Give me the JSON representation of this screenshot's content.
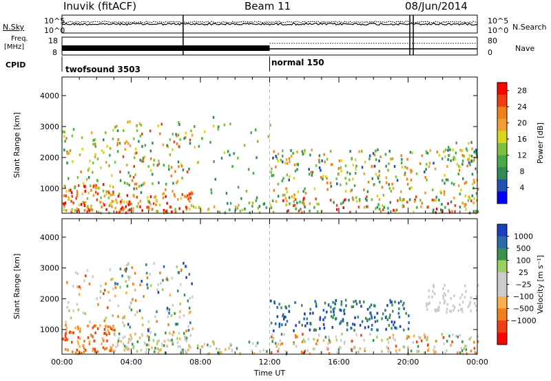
{
  "header": {
    "station": "Inuvik (fitACF)",
    "beam": "Beam 11",
    "date": "08/Jun/2014"
  },
  "params_panel": {
    "nsky_label": "N.Sky",
    "nsearch_label": "N.Search",
    "nsky_ticks": [
      "10^5",
      "10^0"
    ],
    "nsearch_ticks": [
      "10^5",
      "10^0"
    ],
    "freq_label": "Freq.",
    "freq_unit": "[MHz]",
    "freq_ticks": [
      "18",
      "8"
    ],
    "nave_label": "Nave",
    "nave_ticks": [
      "80",
      "0"
    ],
    "cpid_label": "CPID",
    "cpid_modes": [
      {
        "name": "twofsound 3503",
        "start_hour": 0
      },
      {
        "name": "normal 150",
        "start_hour": 12
      }
    ]
  },
  "colors": {
    "power": [
      "#0000ff",
      "#2052b4",
      "#2e8b57",
      "#4aa84a",
      "#7cc23a",
      "#d8d818",
      "#f0a030",
      "#f08018",
      "#f04010",
      "#ff0000"
    ],
    "velocity": [
      "#ff0000",
      "#f04010",
      "#f08018",
      "#f8b050",
      "#cccccc",
      "#cccccc",
      "#9cd060",
      "#3c9050",
      "#2a6aa8",
      "#1a40c0"
    ]
  },
  "chart_data": [
    {
      "type": "heatmap",
      "panel": "power",
      "ylabel": "Slant Range [km]",
      "xlabel": "Time UT",
      "xlim_hours": [
        0,
        24
      ],
      "x_ticks": [
        "00:00",
        "04:00",
        "08:00",
        "12:00",
        "16:00",
        "20:00",
        "00:00"
      ],
      "ylim": [
        200,
        4600
      ],
      "y_ticks": [
        1000,
        2000,
        3000,
        4000
      ],
      "colorbar_label": "Power [dB]",
      "colorbar_ticks": [
        "4",
        "8",
        "12",
        "16",
        "20",
        "24",
        "28"
      ],
      "colorbar_range": [
        0,
        30
      ],
      "scatter_regions": [
        {
          "t0": 0.0,
          "t1": 3.0,
          "r0": 250,
          "r1": 1200,
          "dense": 0.9,
          "vmin": 12,
          "vmax": 30
        },
        {
          "t0": 0.0,
          "t1": 3.0,
          "r0": 1200,
          "r1": 3000,
          "dense": 0.25,
          "vmin": 8,
          "vmax": 22
        },
        {
          "t0": 3.0,
          "t1": 7.5,
          "r0": 250,
          "r1": 900,
          "dense": 0.85,
          "vmin": 14,
          "vmax": 30
        },
        {
          "t0": 3.0,
          "t1": 7.5,
          "r0": 900,
          "r1": 3200,
          "dense": 0.3,
          "vmin": 6,
          "vmax": 26
        },
        {
          "t0": 7.5,
          "t1": 12.0,
          "r0": 250,
          "r1": 600,
          "dense": 0.5,
          "vmin": 6,
          "vmax": 20
        },
        {
          "t0": 7.5,
          "t1": 12.0,
          "r0": 600,
          "r1": 3400,
          "dense": 0.08,
          "vmin": 6,
          "vmax": 16
        },
        {
          "t0": 12.0,
          "t1": 24.0,
          "r0": 250,
          "r1": 800,
          "dense": 0.55,
          "vmin": 6,
          "vmax": 28
        },
        {
          "t0": 12.0,
          "t1": 24.0,
          "r0": 800,
          "r1": 2300,
          "dense": 0.35,
          "vmin": 4,
          "vmax": 24
        },
        {
          "t0": 22.0,
          "t1": 24.0,
          "r0": 1800,
          "r1": 2600,
          "dense": 0.6,
          "vmin": 4,
          "vmax": 20
        }
      ]
    },
    {
      "type": "heatmap",
      "panel": "velocity",
      "ylabel": "Slant Range [km]",
      "xlabel": "Time UT",
      "xlim_hours": [
        0,
        24
      ],
      "x_ticks": [
        "00:00",
        "04:00",
        "08:00",
        "12:00",
        "16:00",
        "20:00",
        "00:00"
      ],
      "ylim": [
        200,
        4600
      ],
      "y_ticks": [
        1000,
        2000,
        3000,
        4000
      ],
      "colorbar_label": "Velocity [m s⁻¹]",
      "colorbar_ticks": [
        "1000",
        "500",
        "100",
        "25",
        "−25",
        "−100",
        "−500",
        "−1000"
      ],
      "scatter_regions": [
        {
          "t0": 0.0,
          "t1": 3.0,
          "r0": 250,
          "r1": 1200,
          "dense": 0.85,
          "vmin": 1,
          "vmax": 3
        },
        {
          "t0": 0.0,
          "t1": 3.0,
          "r0": 1200,
          "r1": 3000,
          "dense": 0.2,
          "vmin": 1,
          "vmax": 6
        },
        {
          "t0": 3.0,
          "t1": 7.5,
          "r0": 250,
          "r1": 900,
          "dense": 0.8,
          "vmin": 3,
          "vmax": 7
        },
        {
          "t0": 3.0,
          "t1": 7.5,
          "r0": 900,
          "r1": 3200,
          "dense": 0.3,
          "vmin": 2,
          "vmax": 9
        },
        {
          "t0": 7.5,
          "t1": 12.0,
          "r0": 250,
          "r1": 700,
          "dense": 0.45,
          "vmin": 3,
          "vmax": 7
        },
        {
          "t0": 12.0,
          "t1": 20.0,
          "r0": 1000,
          "r1": 2000,
          "dense": 0.55,
          "vmin": 7,
          "vmax": 9
        },
        {
          "t0": 12.0,
          "t1": 24.0,
          "r0": 250,
          "r1": 900,
          "dense": 0.55,
          "vmin": 1,
          "vmax": 7
        },
        {
          "t0": 21.0,
          "t1": 24.0,
          "r0": 1600,
          "r1": 2500,
          "dense": 0.6,
          "vmin": 4,
          "vmax": 5
        }
      ]
    }
  ]
}
